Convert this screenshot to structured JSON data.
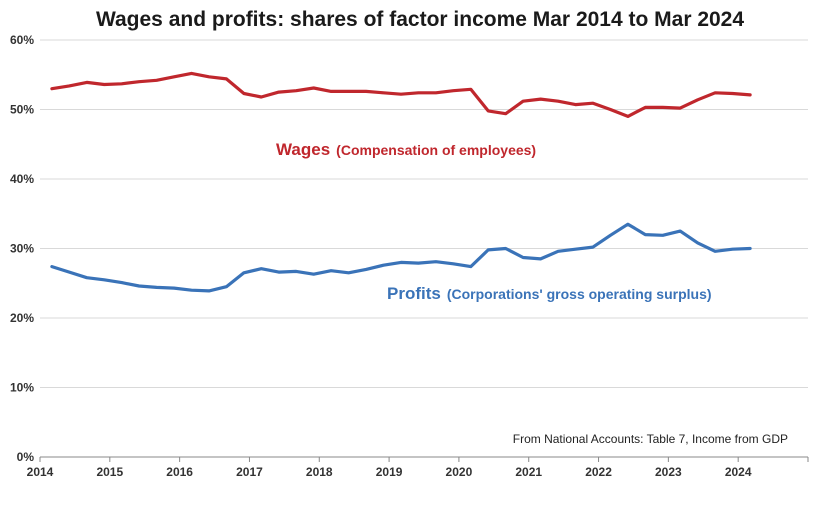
{
  "chart_data": {
    "type": "line",
    "title": "Wages and profits: shares of factor income Mar 2014 to Mar 2024",
    "xlabel": "",
    "ylabel": "",
    "xlim": [
      2014,
      2025
    ],
    "ylim": [
      0,
      60
    ],
    "x_ticks": [
      "2014",
      "2015",
      "2016",
      "2017",
      "2018",
      "2019",
      "2020",
      "2021",
      "2022",
      "2023",
      "2024"
    ],
    "y_ticks": [
      "0%",
      "10%",
      "20%",
      "30%",
      "40%",
      "50%",
      "60%"
    ],
    "grid": true,
    "colors": {
      "wages": "#c0272d",
      "profits": "#3a73b8",
      "grid": "#d9d9d9"
    },
    "series": [
      {
        "key": "wages",
        "name": "Wages",
        "note": "(Compensation of employees)",
        "x": [
          2014.17,
          2014.42,
          2014.67,
          2014.92,
          2015.17,
          2015.42,
          2015.67,
          2015.92,
          2016.17,
          2016.42,
          2016.67,
          2016.92,
          2017.17,
          2017.42,
          2017.67,
          2017.92,
          2018.17,
          2018.42,
          2018.67,
          2018.92,
          2019.17,
          2019.42,
          2019.67,
          2019.92,
          2020.17,
          2020.42,
          2020.67,
          2020.92,
          2021.17,
          2021.42,
          2021.67,
          2021.92,
          2022.17,
          2022.42,
          2022.67,
          2022.92,
          2023.17,
          2023.42,
          2023.67,
          2023.92,
          2024.17
        ],
        "values": [
          53.0,
          53.4,
          53.9,
          53.6,
          53.7,
          54.0,
          54.2,
          54.7,
          55.2,
          54.7,
          54.4,
          52.3,
          51.8,
          52.5,
          52.7,
          53.1,
          52.6,
          52.6,
          52.6,
          52.4,
          52.2,
          52.4,
          52.4,
          52.7,
          52.9,
          49.8,
          49.4,
          51.2,
          51.5,
          51.2,
          50.7,
          50.9,
          50.0,
          49.0,
          50.3,
          50.3,
          50.2,
          51.4,
          52.4,
          52.3,
          52.1
        ]
      },
      {
        "key": "profits",
        "name": "Profits",
        "note": "(Corporations' gross operating surplus)",
        "x": [
          2014.17,
          2014.42,
          2014.67,
          2014.92,
          2015.17,
          2015.42,
          2015.67,
          2015.92,
          2016.17,
          2016.42,
          2016.67,
          2016.92,
          2017.17,
          2017.42,
          2017.67,
          2017.92,
          2018.17,
          2018.42,
          2018.67,
          2018.92,
          2019.17,
          2019.42,
          2019.67,
          2019.92,
          2020.17,
          2020.42,
          2020.67,
          2020.92,
          2021.17,
          2021.42,
          2021.67,
          2021.92,
          2022.17,
          2022.42,
          2022.67,
          2022.92,
          2023.17,
          2023.42,
          2023.67,
          2023.92,
          2024.17
        ],
        "values": [
          27.4,
          26.6,
          25.8,
          25.5,
          25.1,
          24.6,
          24.4,
          24.3,
          24.0,
          23.9,
          24.5,
          26.5,
          27.1,
          26.6,
          26.7,
          26.3,
          26.8,
          26.5,
          27.0,
          27.6,
          28.0,
          27.9,
          28.1,
          27.8,
          27.4,
          29.8,
          30.0,
          28.7,
          28.5,
          29.6,
          29.9,
          30.2,
          31.9,
          33.5,
          32.0,
          31.9,
          32.5,
          30.8,
          29.6,
          29.9,
          30.0
        ]
      }
    ],
    "source_note": "From National Accounts: Table 7, Income from GDP"
  }
}
